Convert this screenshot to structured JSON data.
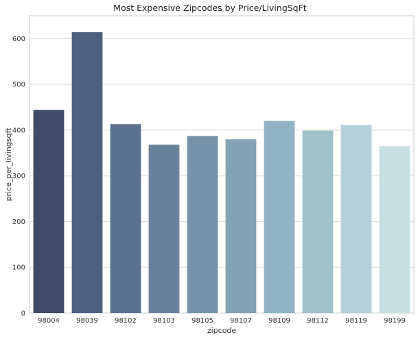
{
  "chart_data": {
    "type": "bar",
    "title": "Most Expensive Zipcodes by Price/LivingSqFt",
    "xlabel": "zipcode",
    "ylabel": "price_per_livingsqft",
    "categories": [
      "98004",
      "98039",
      "98102",
      "98103",
      "98105",
      "98107",
      "98109",
      "98112",
      "98119",
      "98199"
    ],
    "values": [
      444,
      614,
      413,
      368,
      387,
      380,
      420,
      399,
      411,
      365
    ],
    "ylim": [
      0,
      650
    ],
    "yticks": [
      0,
      100,
      200,
      300,
      400,
      500,
      600
    ],
    "grid": true,
    "colors": [
      "#3f4b69",
      "#4d6080",
      "#5a7190",
      "#67829c",
      "#7594ab",
      "#83a3b3",
      "#91b4c4",
      "#a1c1cb",
      "#b3d1d8",
      "#c9e0e2"
    ]
  }
}
